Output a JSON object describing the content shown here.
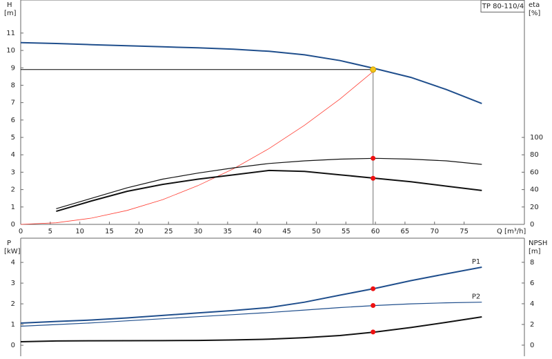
{
  "chart_data": [
    {
      "type": "line",
      "label": "TP 80-110/4",
      "ylabel": "H",
      "yunit": "[m]",
      "y2label": "eta",
      "y2unit": "[%]",
      "xlabel": "Q [m³/h]",
      "x": [
        0,
        6,
        12,
        18,
        24,
        30,
        36,
        42,
        48,
        54,
        60,
        66,
        72,
        78
      ],
      "xlim": [
        0,
        85.2
      ],
      "xticks": [
        0,
        5,
        10,
        15,
        20,
        25,
        30,
        35,
        40,
        45,
        50,
        55,
        60,
        65,
        70,
        75
      ],
      "ylim": [
        0,
        12.9
      ],
      "yticks": [
        0,
        1,
        2,
        3,
        4,
        5,
        6,
        7,
        8,
        9,
        10,
        11
      ],
      "y2lim": [
        0,
        258
      ],
      "y2ticks": [
        0,
        20,
        40,
        60,
        80,
        100
      ],
      "duty_point": {
        "x": 59.6,
        "y": 8.9,
        "color": "#f5c518"
      },
      "series": [
        {
          "color": "#1f4e8c",
          "line_width": 2,
          "values": [
            10.45,
            10.4,
            10.33,
            10.27,
            10.21,
            10.15,
            10.07,
            9.95,
            9.75,
            9.42,
            8.95,
            8.45,
            7.75,
            6.95
          ]
        },
        {
          "color": "#ff3b30",
          "line_width": 0.8,
          "values": [
            0,
            0.09,
            0.36,
            0.8,
            1.42,
            2.23,
            3.2,
            4.36,
            5.7,
            7.21,
            8.9,
            null,
            null,
            null
          ]
        },
        {
          "color": "#111111",
          "line_width": 1.2,
          "axis": "y2",
          "values": [
            null,
            18,
            30,
            42,
            52,
            59,
            65,
            70,
            73,
            75,
            76,
            75,
            73,
            69
          ],
          "marker": {
            "x": 59.6,
            "y": 76,
            "color": "#ee1111"
          }
        },
        {
          "color": "#111111",
          "line_width": 2,
          "axis": "y2",
          "values": [
            null,
            15,
            27,
            38,
            46,
            52,
            57,
            62,
            61,
            57,
            53,
            49,
            44,
            39
          ],
          "marker": {
            "x": 59.6,
            "y": 53,
            "color": "#ee1111"
          }
        }
      ]
    },
    {
      "type": "line",
      "ylabel": "P",
      "yunit": "[kW]",
      "y2label": "NPSH",
      "y2unit": "[m]",
      "x": [
        0,
        6,
        12,
        18,
        24,
        30,
        36,
        42,
        48,
        54,
        60,
        66,
        72,
        78
      ],
      "xlim": [
        0,
        85.2
      ],
      "ylim": [
        -0.53,
        5.17
      ],
      "yticks": [
        0,
        1,
        2,
        3,
        4
      ],
      "y2lim": [
        -1.07,
        10.33
      ],
      "y2ticks": [
        0,
        2,
        4,
        6,
        8
      ],
      "series": [
        {
          "name": "P1",
          "color": "#1f4e8c",
          "line_width": 2,
          "values": [
            1.07,
            1.15,
            1.22,
            1.32,
            1.44,
            1.56,
            1.68,
            1.82,
            2.08,
            2.42,
            2.75,
            3.12,
            3.45,
            3.77
          ],
          "marker": {
            "x": 59.6,
            "y": 2.73,
            "color": "#ee1111"
          }
        },
        {
          "name": "P2",
          "color": "#1f4e8c",
          "line_width": 1.2,
          "values": [
            0.92,
            1.0,
            1.08,
            1.18,
            1.28,
            1.38,
            1.48,
            1.58,
            1.7,
            1.82,
            1.92,
            2.0,
            2.05,
            2.08
          ],
          "marker": {
            "x": 59.6,
            "y": 1.92,
            "color": "#ee1111"
          }
        },
        {
          "color": "#111111",
          "line_width": 2,
          "axis": "y2",
          "values": [
            0.33,
            0.4,
            0.42,
            0.43,
            0.44,
            0.46,
            0.5,
            0.58,
            0.72,
            0.93,
            1.27,
            1.7,
            2.2,
            2.73
          ],
          "marker": {
            "x": 59.6,
            "y": 1.27,
            "color": "#ee1111"
          }
        }
      ]
    }
  ]
}
